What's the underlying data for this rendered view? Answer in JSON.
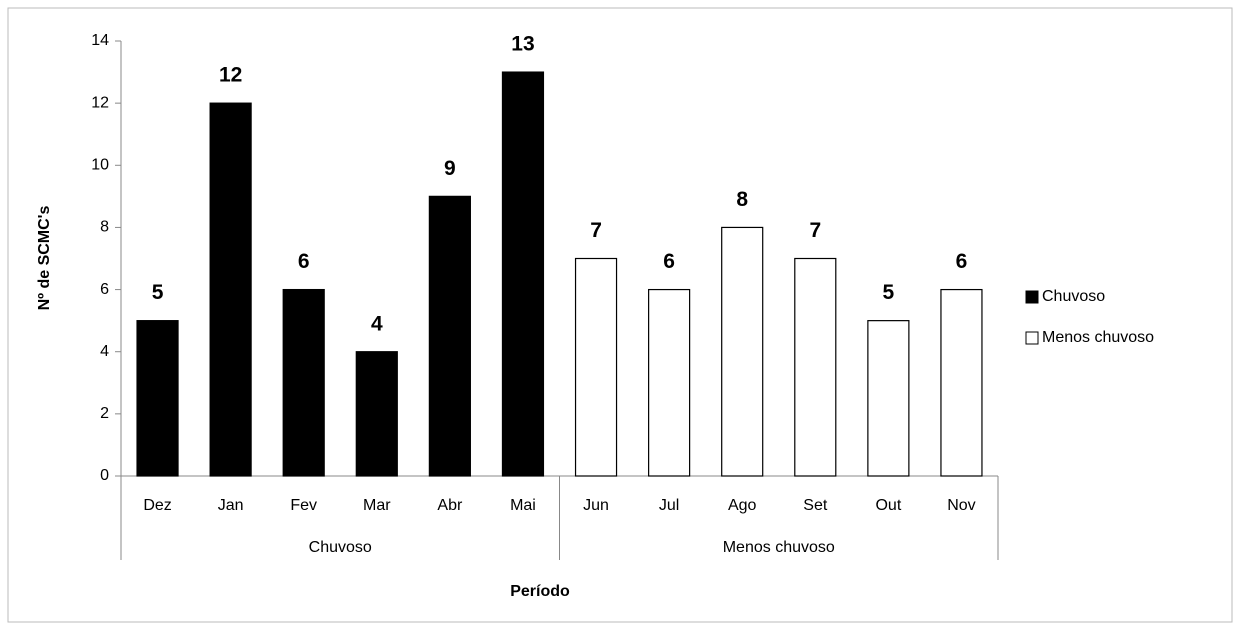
{
  "chart_data": {
    "type": "bar",
    "categories": [
      "Dez",
      "Jan",
      "Fev",
      "Mar",
      "Abr",
      "Mai",
      "Jun",
      "Jul",
      "Ago",
      "Set",
      "Out",
      "Nov"
    ],
    "series": [
      {
        "name": "Chuvoso",
        "color": "#000000",
        "values": [
          5,
          12,
          6,
          4,
          9,
          13,
          null,
          null,
          null,
          null,
          null,
          null
        ]
      },
      {
        "name": "Menos chuvoso",
        "color": "#ffffff",
        "values": [
          null,
          null,
          null,
          null,
          null,
          null,
          7,
          6,
          8,
          7,
          5,
          6
        ]
      }
    ],
    "xlabel": "Período",
    "ylabel": "Nº de SCMC's",
    "ylim": [
      0,
      14
    ],
    "yticks": [
      0,
      2,
      4,
      6,
      8,
      10,
      12,
      14
    ],
    "legend": "right"
  }
}
